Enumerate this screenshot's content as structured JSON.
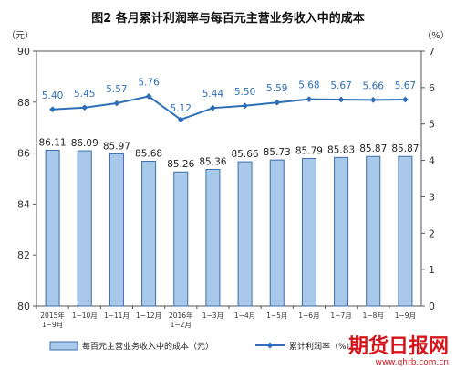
{
  "chart_data": {
    "type": "bar+line",
    "title": "图2  各月累计利润率与每百元主营业务收入中的成本",
    "y_left_unit": "（元）",
    "y_right_unit": "（%）",
    "categories": [
      [
        "2015年",
        "1−9月"
      ],
      [
        "1−10月"
      ],
      [
        "1−11月"
      ],
      [
        "1−12月"
      ],
      [
        "2016年",
        "1−2月"
      ],
      [
        "1−3月"
      ],
      [
        "1−4月"
      ],
      [
        "1−5月"
      ],
      [
        "1−6月"
      ],
      [
        "1−7月"
      ],
      [
        "1−8月"
      ],
      [
        "1−9月"
      ]
    ],
    "series": [
      {
        "name": "每百元主营业务收入中的成本（元）",
        "type": "bar",
        "axis": "left",
        "values": [
          86.11,
          86.09,
          85.97,
          85.68,
          85.26,
          85.36,
          85.66,
          85.73,
          85.79,
          85.83,
          85.87,
          85.87
        ],
        "labels": [
          "86.11",
          "86.09",
          "85.97",
          "85.68",
          "85.26",
          "85.36",
          "85.66",
          "85.73",
          "85.79",
          "85.83",
          "85.87",
          "85.87"
        ]
      },
      {
        "name": "累计利润率（%）",
        "type": "line",
        "axis": "right",
        "values": [
          5.4,
          5.45,
          5.57,
          5.76,
          5.12,
          5.44,
          5.5,
          5.59,
          5.68,
          5.67,
          5.66,
          5.67
        ],
        "labels": [
          "5.40",
          "5.45",
          "5.57",
          "5.76",
          "5.12",
          "5.44",
          "5.50",
          "5.59",
          "5.68",
          "5.67",
          "5.66",
          "5.67"
        ]
      }
    ],
    "y_left": {
      "min": 80,
      "max": 90,
      "ticks": [
        "80",
        "82",
        "84",
        "86",
        "88",
        "90"
      ]
    },
    "y_right": {
      "min": 0,
      "max": 7,
      "ticks": [
        "0",
        "1",
        "2",
        "3",
        "4",
        "5",
        "6",
        "7"
      ]
    },
    "grid": false,
    "legend_position": "bottom",
    "colors": {
      "bar_fill": "#a9c9ea",
      "bar_stroke": "#3d6fa8",
      "line": "#2e6fb8",
      "axis": "#555555"
    }
  },
  "watermark": {
    "text": "期货日报网",
    "url": "www.qhrb.com.cn",
    "color": "#d6151b"
  }
}
